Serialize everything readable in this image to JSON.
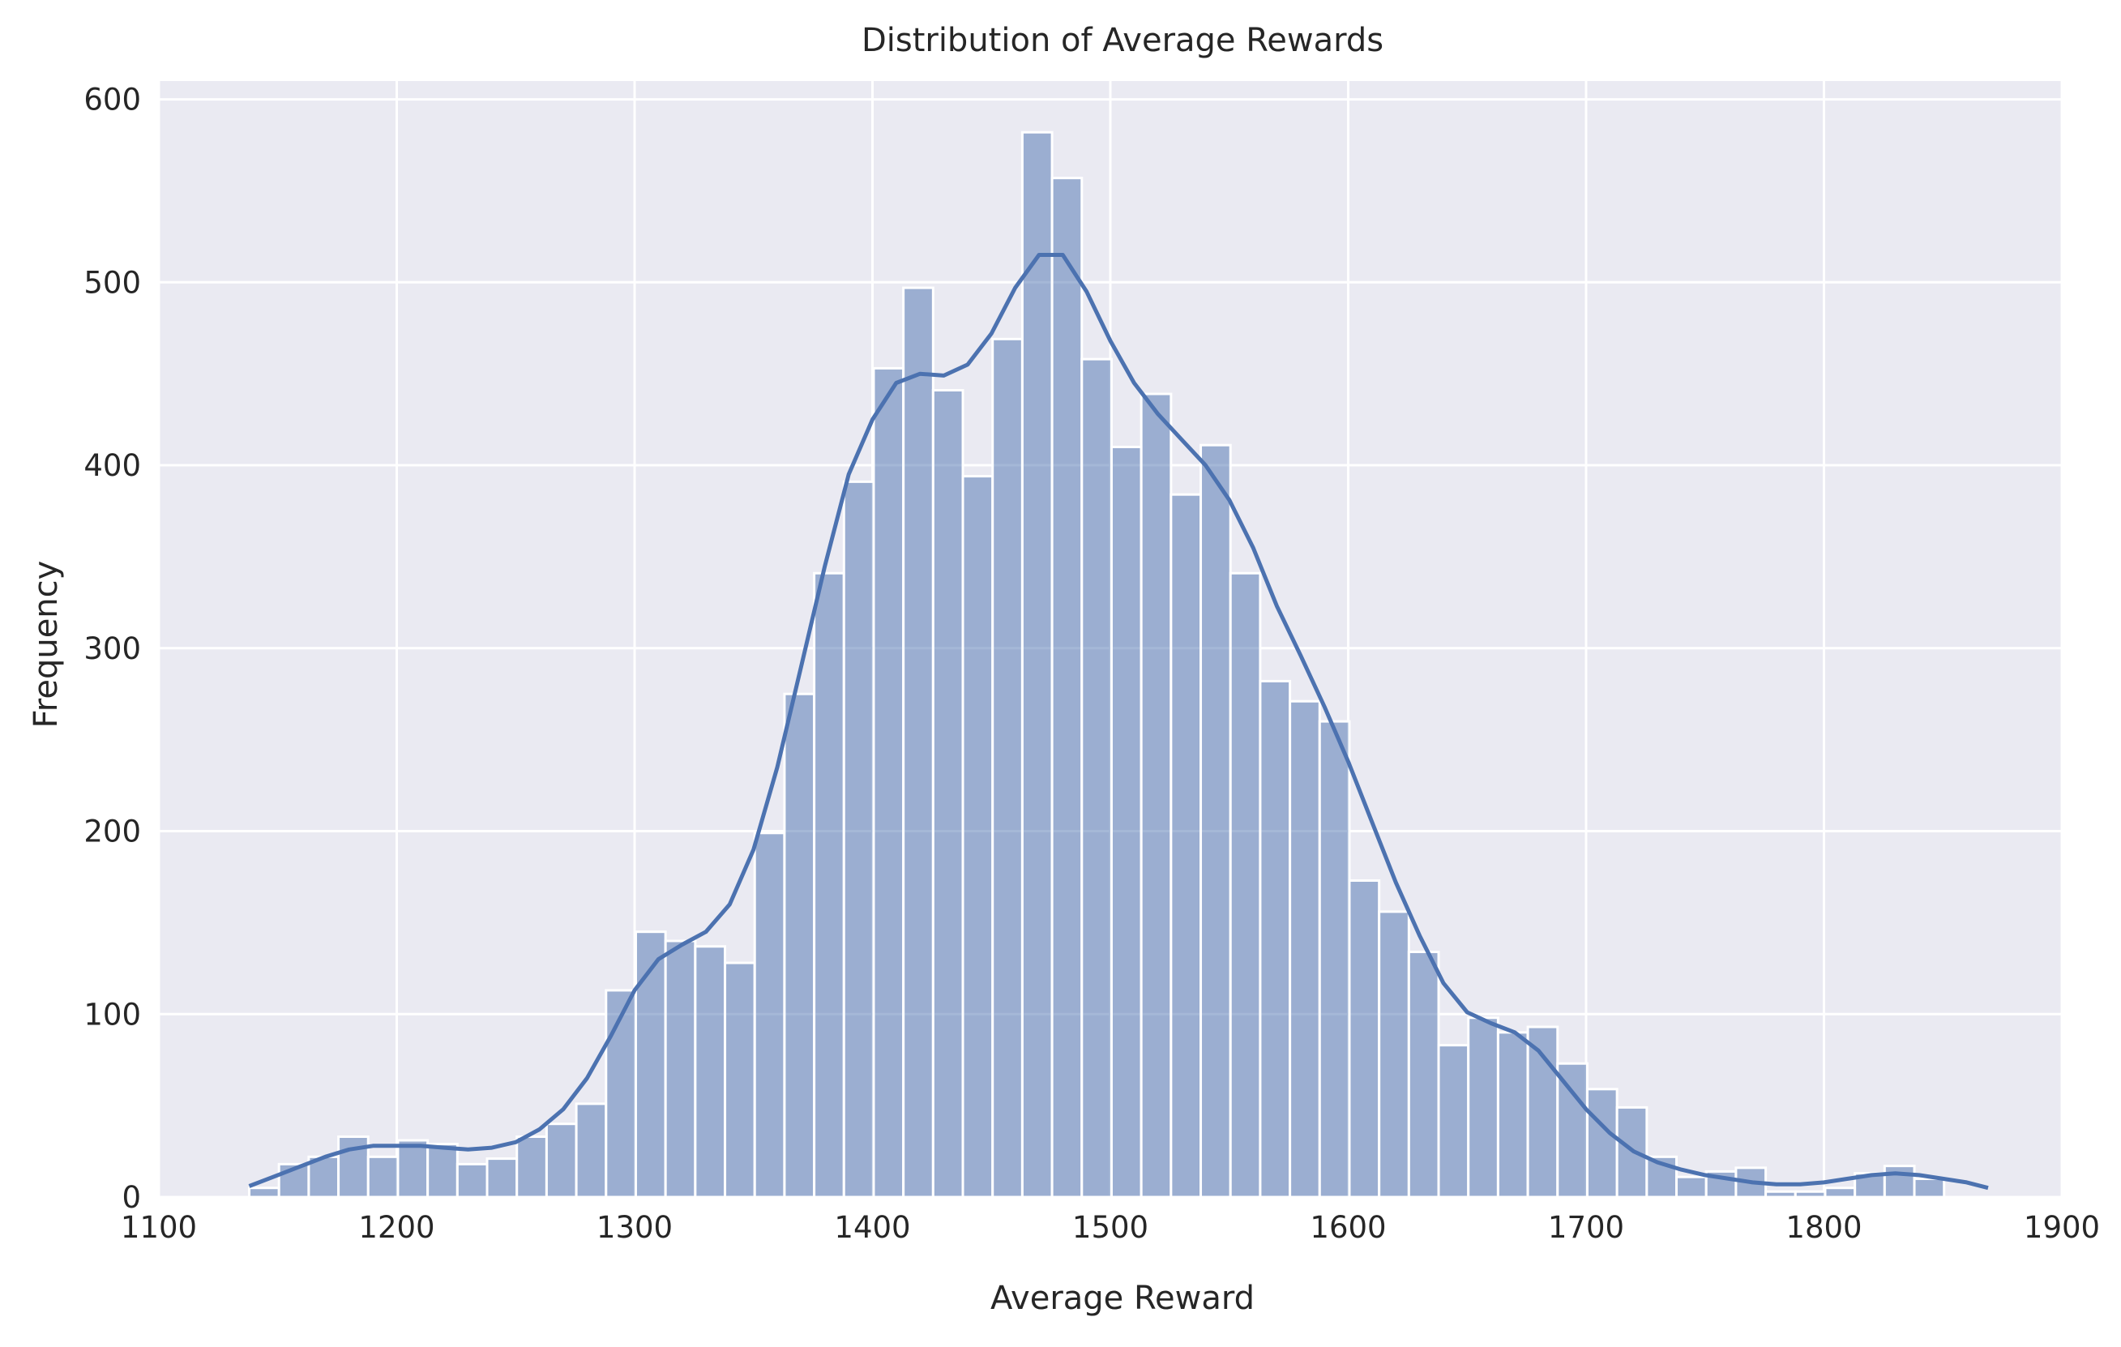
{
  "chart_data": {
    "type": "bar",
    "subtype": "histogram-with-kde",
    "title": "Distribution of Average Rewards",
    "xlabel": "Average Reward",
    "ylabel": "Frequency",
    "xlim": [
      1100,
      1900
    ],
    "ylim": [
      0,
      610
    ],
    "xticks": [
      1100,
      1200,
      1300,
      1400,
      1500,
      1600,
      1700,
      1800,
      1900
    ],
    "yticks": [
      0,
      100,
      200,
      300,
      400,
      500,
      600
    ],
    "grid": true,
    "background_color": "#EAEAF2",
    "bar_color": "#4C72B0",
    "bar_opacity": 0.5,
    "line_color": "#4C72B0",
    "bin_start": 1138,
    "bin_width": 12.5,
    "values": [
      5,
      18,
      22,
      33,
      22,
      31,
      29,
      18,
      21,
      33,
      40,
      51,
      113,
      145,
      140,
      137,
      128,
      199,
      275,
      341,
      391,
      453,
      497,
      441,
      394,
      469,
      582,
      557,
      458,
      410,
      439,
      384,
      411,
      341,
      282,
      271,
      260,
      173,
      156,
      134,
      83,
      98,
      90,
      93,
      73,
      59,
      49,
      22,
      11,
      14,
      16,
      3,
      3,
      5,
      13,
      17,
      10
    ],
    "kde": {
      "x": [
        1138,
        1150,
        1160,
        1170,
        1180,
        1190,
        1200,
        1210,
        1220,
        1230,
        1240,
        1250,
        1260,
        1270,
        1280,
        1290,
        1300,
        1310,
        1320,
        1330,
        1340,
        1350,
        1360,
        1370,
        1380,
        1390,
        1400,
        1410,
        1420,
        1430,
        1440,
        1450,
        1460,
        1470,
        1480,
        1490,
        1500,
        1510,
        1520,
        1530,
        1540,
        1550,
        1560,
        1570,
        1580,
        1590,
        1600,
        1610,
        1620,
        1630,
        1640,
        1650,
        1660,
        1670,
        1680,
        1690,
        1700,
        1710,
        1720,
        1730,
        1740,
        1750,
        1760,
        1770,
        1780,
        1790,
        1800,
        1810,
        1820,
        1830,
        1840,
        1850,
        1860,
        1869
      ],
      "y": [
        6,
        12,
        17,
        22,
        26,
        28,
        28,
        28,
        27,
        26,
        27,
        30,
        37,
        48,
        65,
        88,
        113,
        130,
        138,
        145,
        160,
        190,
        235,
        290,
        345,
        395,
        425,
        445,
        450,
        449,
        455,
        472,
        497,
        515,
        515,
        495,
        468,
        445,
        428,
        414,
        400,
        381,
        355,
        323,
        296,
        268,
        238,
        205,
        172,
        143,
        117,
        101,
        95,
        90,
        80,
        64,
        48,
        35,
        25,
        19,
        15,
        12,
        10,
        8,
        7,
        7,
        8,
        10,
        12,
        13,
        12,
        10,
        8,
        5
      ]
    }
  }
}
